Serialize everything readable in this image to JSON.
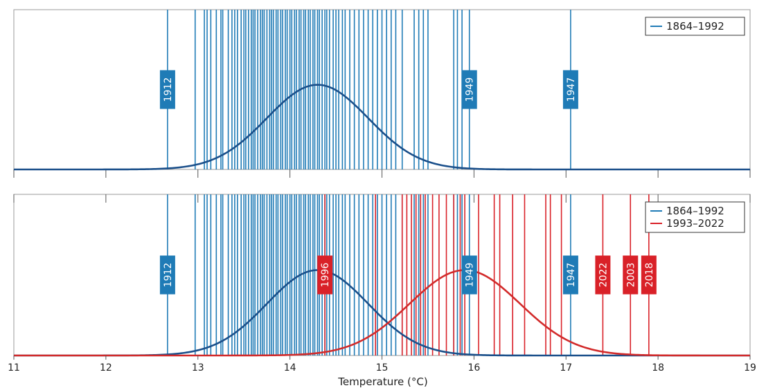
{
  "chart_data": {
    "type": "line",
    "xlabel": "Temperature (°C)",
    "xlim": [
      11,
      19
    ],
    "x_ticks": [
      "11",
      "12",
      "13",
      "14",
      "15",
      "16",
      "17",
      "18",
      "19"
    ],
    "colors": {
      "blue": "#1f7bb6",
      "blue_curve": "#1a4f8a",
      "red": "#d92128",
      "red_curve": "#d22a2a"
    },
    "panels": [
      {
        "name": "top",
        "legend": [
          "1864–1992"
        ],
        "legend_position": "top-right",
        "series": [
          {
            "name": "1864–1992",
            "curve": {
              "mean": 14.3,
              "sd": 0.55
            },
            "years": [
              12.67,
              12.97,
              13.07,
              13.1,
              13.14,
              13.2,
              13.25,
              13.27,
              13.33,
              13.37,
              13.4,
              13.43,
              13.47,
              13.5,
              13.52,
              13.55,
              13.58,
              13.6,
              13.62,
              13.65,
              13.68,
              13.7,
              13.72,
              13.75,
              13.78,
              13.8,
              13.82,
              13.85,
              13.87,
              13.9,
              13.92,
              13.95,
              13.97,
              14.0,
              14.02,
              14.05,
              14.07,
              14.1,
              14.12,
              14.15,
              14.17,
              14.2,
              14.22,
              14.25,
              14.27,
              14.3,
              14.32,
              14.35,
              14.38,
              14.4,
              14.43,
              14.47,
              14.5,
              14.53,
              14.57,
              14.6,
              14.65,
              14.7,
              14.75,
              14.8,
              14.85,
              14.9,
              14.95,
              15.0,
              15.05,
              15.1,
              15.15,
              15.22,
              15.35,
              15.4,
              15.45,
              15.5,
              15.78,
              15.82,
              15.87,
              15.95,
              17.05
            ],
            "labels": [
              {
                "year": "1912",
                "x": 12.67
              },
              {
                "year": "1949",
                "x": 15.95
              },
              {
                "year": "1947",
                "x": 17.05
              }
            ]
          }
        ]
      },
      {
        "name": "bottom",
        "legend": [
          "1864–1992",
          "1993–2022"
        ],
        "legend_position": "top-right",
        "series": [
          {
            "name": "1864–1992",
            "curve": {
              "mean": 14.3,
              "sd": 0.55
            },
            "years": [
              12.67,
              12.97,
              13.07,
              13.1,
              13.14,
              13.2,
              13.25,
              13.27,
              13.33,
              13.37,
              13.4,
              13.43,
              13.47,
              13.5,
              13.52,
              13.55,
              13.58,
              13.6,
              13.62,
              13.65,
              13.68,
              13.7,
              13.72,
              13.75,
              13.78,
              13.8,
              13.82,
              13.85,
              13.87,
              13.9,
              13.92,
              13.95,
              13.97,
              14.0,
              14.02,
              14.05,
              14.07,
              14.1,
              14.12,
              14.15,
              14.17,
              14.2,
              14.22,
              14.25,
              14.27,
              14.3,
              14.32,
              14.35,
              14.38,
              14.4,
              14.43,
              14.47,
              14.5,
              14.53,
              14.57,
              14.6,
              14.65,
              14.7,
              14.75,
              14.8,
              14.85,
              14.9,
              14.95,
              15.0,
              15.05,
              15.1,
              15.15,
              15.22,
              15.35,
              15.4,
              15.45,
              15.5,
              15.78,
              15.82,
              15.87,
              15.95,
              17.05
            ],
            "labels": [
              {
                "year": "1912",
                "x": 12.67
              },
              {
                "year": "1949",
                "x": 15.95
              },
              {
                "year": "1947",
                "x": 17.05
              }
            ]
          },
          {
            "name": "1993–2022",
            "curve": {
              "mean": 15.9,
              "sd": 0.6
            },
            "years": [
              14.38,
              14.93,
              15.22,
              15.27,
              15.32,
              15.37,
              15.42,
              15.47,
              15.55,
              15.62,
              15.7,
              15.78,
              15.85,
              15.9,
              16.05,
              16.22,
              16.28,
              16.42,
              16.55,
              16.78,
              16.83,
              16.95,
              17.4,
              17.7,
              17.9
            ],
            "labels": [
              {
                "year": "1996",
                "x": 14.38
              },
              {
                "year": "2022",
                "x": 17.4
              },
              {
                "year": "2003",
                "x": 17.7
              },
              {
                "year": "2018",
                "x": 17.9
              }
            ]
          }
        ]
      }
    ]
  }
}
